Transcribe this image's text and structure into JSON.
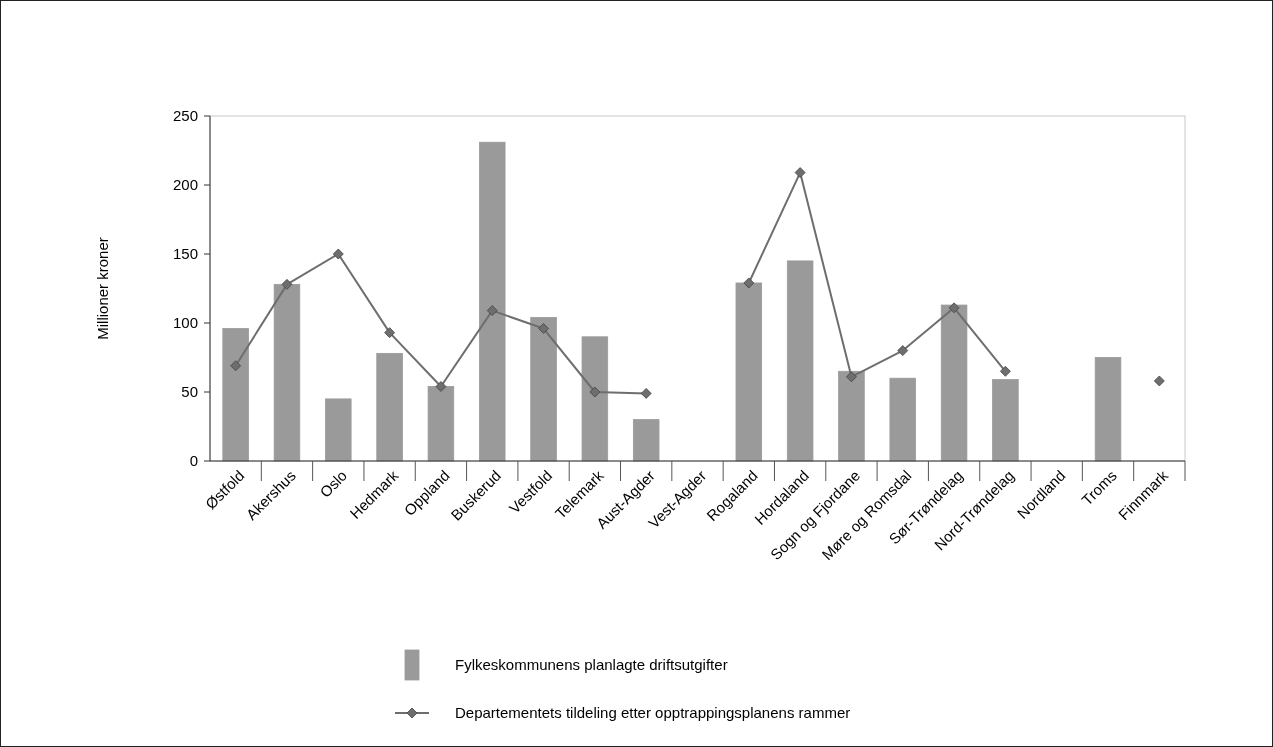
{
  "chart_data": {
    "type": "bar",
    "ylabel": "Millioner kroner",
    "categories": [
      "Østfold",
      "Akershus",
      "Oslo",
      "Hedmark",
      "Oppland",
      "Buskerud",
      "Vestfold",
      "Telemark",
      "Aust-Agder",
      "Vest-Agder",
      "Rogaland",
      "Hordaland",
      "Sogn og Fjordane",
      "Møre og Romsdal",
      "Sør-Trøndelag",
      "Nord-Trøndelag",
      "Nordland",
      "Troms",
      "Finnmark"
    ],
    "series": [
      {
        "name": "Fylkeskommunens planlagte driftsutgifter",
        "color": "#9a9a9a",
        "values": [
          96,
          128,
          45,
          78,
          54,
          231,
          104,
          90,
          30,
          null,
          129,
          145,
          65,
          60,
          113,
          59,
          null,
          75,
          null
        ]
      },
      {
        "name": "Departementets tildeling etter opptrappingsplanens rammer",
        "type": "line",
        "color": "#6e6e6e",
        "values": [
          69,
          128,
          150,
          93,
          54,
          109,
          96,
          50,
          49,
          null,
          129,
          209,
          61,
          80,
          111,
          65,
          null,
          null,
          58
        ]
      }
    ],
    "ylim": [
      0,
      250
    ],
    "yticks": [
      0,
      50,
      100,
      150,
      200,
      250
    ],
    "grid": false,
    "legend": "bottom",
    "marker": "diamond",
    "line_style": "solid"
  }
}
